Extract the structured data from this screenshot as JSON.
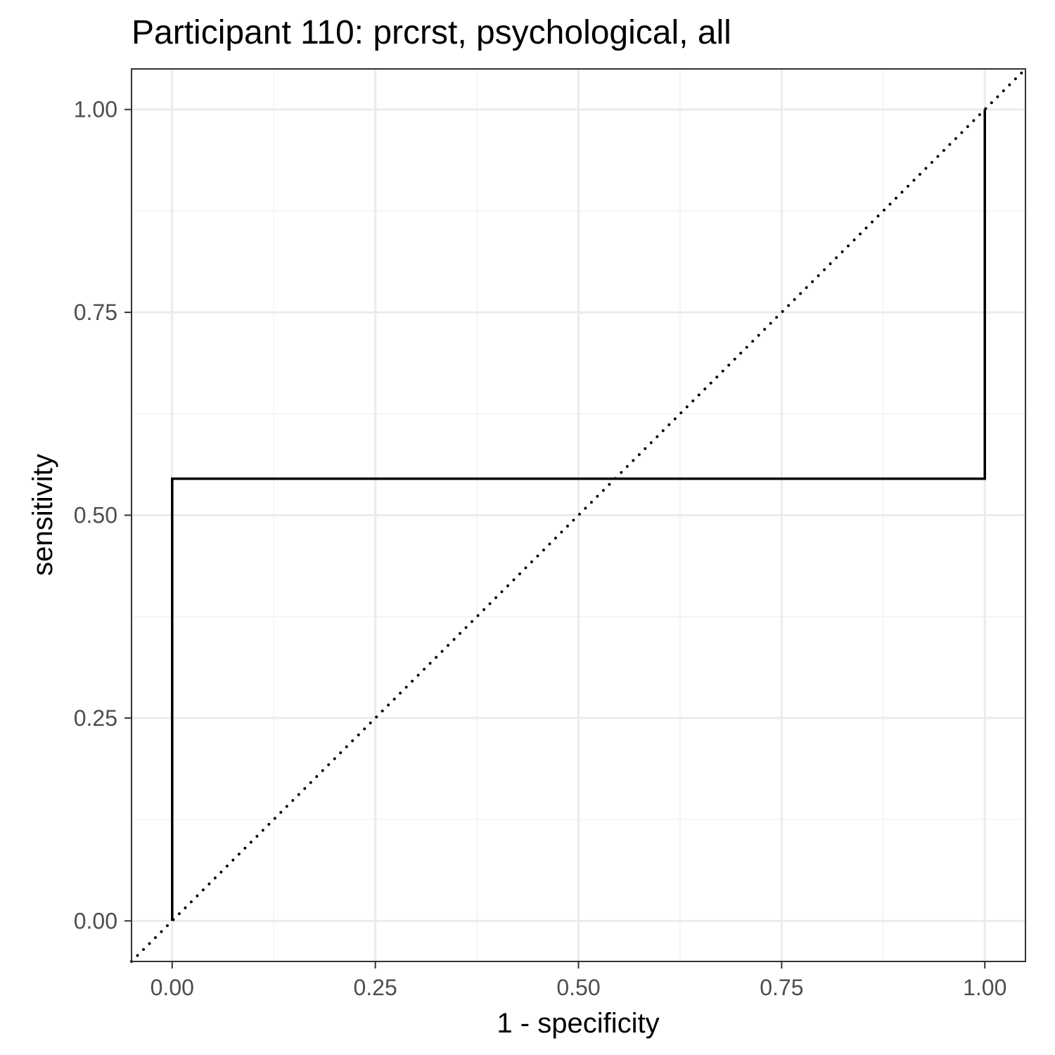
{
  "chart_data": {
    "type": "line",
    "title": "Participant 110: prcrst, psychological, all",
    "xlabel": "1 - specificity",
    "ylabel": "sensitivity",
    "xlim": [
      -0.05,
      1.05
    ],
    "ylim": [
      -0.05,
      1.05
    ],
    "x_ticks": [
      0,
      0.25,
      0.5,
      0.75,
      1
    ],
    "x_tick_labels": [
      "0.00",
      "0.25",
      "0.50",
      "0.75",
      "1.00"
    ],
    "y_ticks": [
      0,
      0.25,
      0.5,
      0.75,
      1
    ],
    "y_tick_labels": [
      "0.00",
      "0.25",
      "0.50",
      "0.75",
      "1.00"
    ],
    "grid": true,
    "series": [
      {
        "style": "solid",
        "color": "#000000",
        "x": [
          0,
          0,
          1,
          1
        ],
        "y": [
          0,
          0.545,
          0.545,
          1
        ]
      },
      {
        "style": "dotted",
        "color": "#000000",
        "x": [
          -0.05,
          1.05
        ],
        "y": [
          -0.05,
          1.05
        ]
      }
    ],
    "colors": {
      "background": "#ffffff",
      "grid_major": "#ebebeb",
      "grid_minor": "#f2f2f2",
      "border": "#333333",
      "tick": "#333333"
    }
  }
}
